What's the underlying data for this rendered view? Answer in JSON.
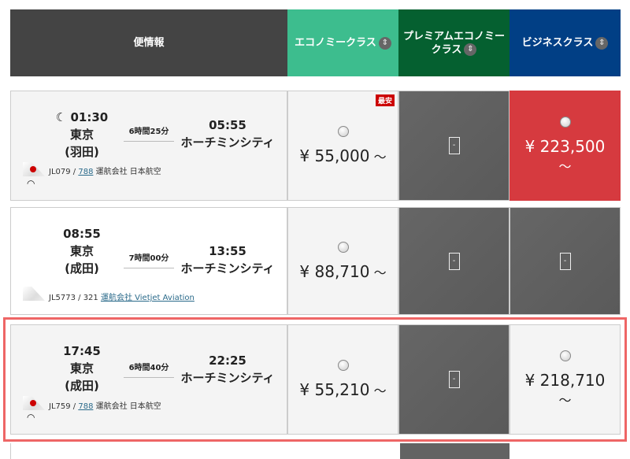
{
  "header": {
    "flight": "便情報",
    "economy": "エコノミークラス",
    "premium": "プレミアムエコノミークラス",
    "business": "ビジネスクラス",
    "sort_icon": "sort-updown-icon"
  },
  "colors": {
    "flight_header": "#444444",
    "economy": "#3dbd8e",
    "premium": "#056030",
    "business": "#013f85",
    "selected_outline": "#ee6666",
    "selected_fare": "#d63a3f",
    "unavailable": "#636363"
  },
  "flights": [
    {
      "dep_time": "01:30",
      "dep_city": "東京",
      "dep_airport": "(羽田)",
      "duration": "6時間25分",
      "arr_time": "05:55",
      "arr_city": "ホーチミンシティ",
      "flight_no": "JL079 / ",
      "aircraft": "788",
      "operator": "運航会社 日本航空",
      "night": true,
      "wifi": true,
      "economy": "¥ 55,000",
      "economy_suffix": "～",
      "badge": "最安",
      "premium": "-",
      "business": "¥ 223,500",
      "business_suffix": "～"
    },
    {
      "dep_time": "08:55",
      "dep_city": "東京",
      "dep_airport": "(成田)",
      "duration": "7時間00分",
      "arr_time": "13:55",
      "arr_city": "ホーチミンシティ",
      "flight_no": "JL5773 / 321 ",
      "operator": "運航会社 Vietjet Aviation",
      "economy": "¥ 88,710",
      "economy_suffix": "～",
      "premium": "-",
      "business": "-"
    },
    {
      "dep_time": "17:45",
      "dep_city": "東京",
      "dep_airport": "(成田)",
      "duration": "6時間40分",
      "arr_time": "22:25",
      "arr_city": "ホーチミンシティ",
      "flight_no": "JL759 / ",
      "aircraft": "788",
      "operator": "運航会社 日本航空",
      "wifi": true,
      "economy": "¥ 55,210",
      "economy_suffix": "～",
      "premium": "-",
      "business": "¥ 218,710",
      "business_suffix": "～",
      "selected": true
    }
  ]
}
